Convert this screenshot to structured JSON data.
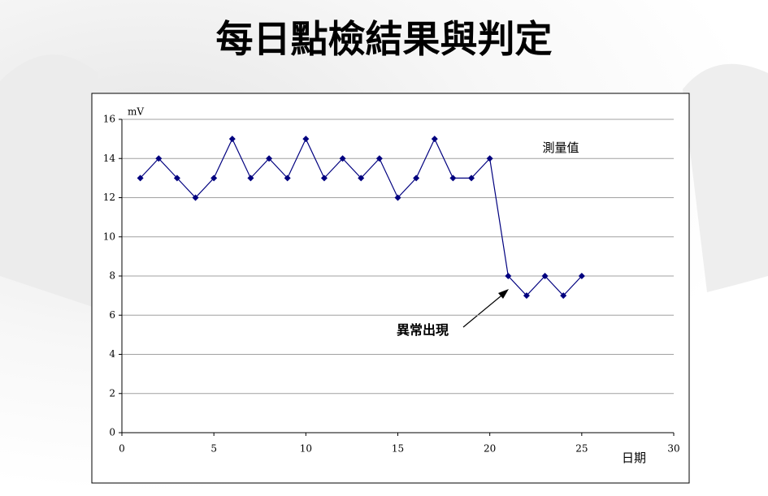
{
  "title": "每日點檢結果與判定",
  "chart_data": {
    "type": "line",
    "x": [
      1,
      2,
      3,
      4,
      5,
      6,
      7,
      8,
      9,
      10,
      11,
      12,
      13,
      14,
      15,
      16,
      17,
      18,
      19,
      20,
      21,
      22,
      23,
      24,
      25
    ],
    "series": [
      {
        "name": "測量值",
        "color": "#00007f",
        "values": [
          13,
          14,
          13,
          12,
          13,
          15,
          13,
          14,
          13,
          15,
          13,
          14,
          13,
          14,
          12,
          13,
          15,
          13,
          13,
          14,
          8,
          7,
          8,
          7,
          8
        ]
      }
    ],
    "xlim": [
      0,
      30
    ],
    "xticks": [
      0,
      5,
      10,
      15,
      20,
      25,
      30
    ],
    "ylim": [
      0,
      16
    ],
    "yticks": [
      0,
      2,
      4,
      6,
      8,
      10,
      12,
      14,
      16
    ],
    "y_label": "mV",
    "x_label": "日期",
    "annotation": {
      "text": "異常出現",
      "color": "#e00000"
    },
    "grid": true
  }
}
